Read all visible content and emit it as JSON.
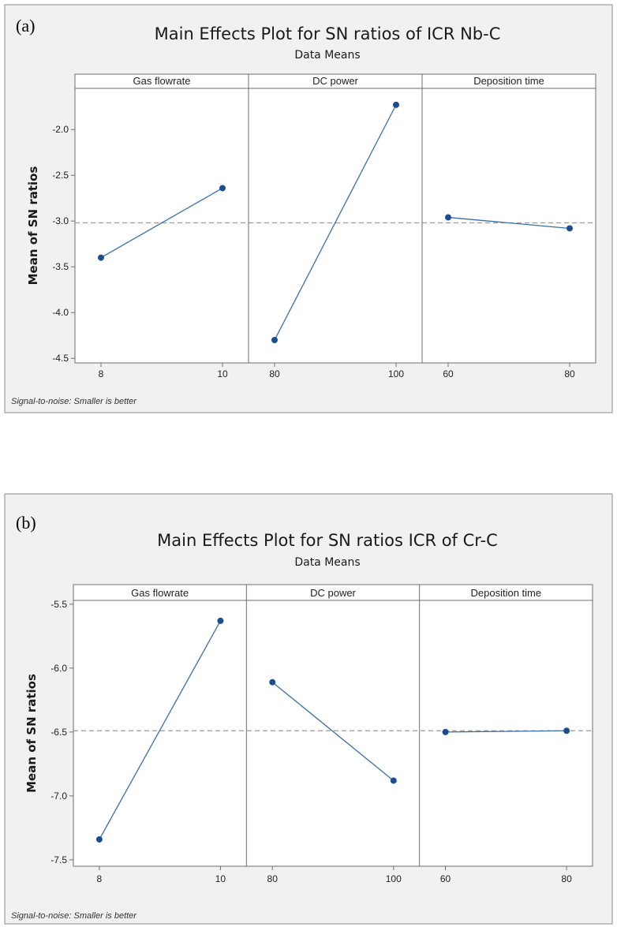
{
  "chart_data": [
    {
      "type": "line",
      "panel_tag": "(a)",
      "title": "Main Effects Plot for SN ratios of ICR Nb-C",
      "subtitle": "Data Means",
      "ylabel": "Mean of SN ratios",
      "xlabel": "",
      "footnote": "Signal-to-noise: Smaller is better",
      "ylim": [
        -4.55,
        -1.55
      ],
      "yticks": [
        -2.0,
        -2.5,
        -3.0,
        -3.5,
        -4.0,
        -4.5
      ],
      "ytick_labels": [
        "-2.0",
        "-2.5",
        "-3.0",
        "-3.5",
        "-4.0",
        "-4.5"
      ],
      "reference_mean": -3.02,
      "panels": [
        {
          "factor": "Gas flowrate",
          "x": [
            "8",
            "10"
          ],
          "values": [
            -3.4,
            -2.64
          ]
        },
        {
          "factor": "DC power",
          "x": [
            "80",
            "100"
          ],
          "values": [
            -4.3,
            -1.73
          ]
        },
        {
          "factor": "Deposition time",
          "x": [
            "60",
            "80"
          ],
          "values": [
            -2.96,
            -3.08
          ]
        }
      ]
    },
    {
      "type": "line",
      "panel_tag": "(b)",
      "title": "Main Effects Plot for SN ratios ICR of Cr-C",
      "subtitle": "Data Means",
      "ylabel": "Mean of SN ratios",
      "xlabel": "",
      "footnote": "Signal-to-noise: Smaller is better",
      "ylim": [
        -7.55,
        -5.47
      ],
      "yticks": [
        -5.5,
        -6.0,
        -6.5,
        -7.0,
        -7.5
      ],
      "ytick_labels": [
        "-5.5",
        "-6.0",
        "-6.5",
        "-7.0",
        "-7.5"
      ],
      "reference_mean": -6.49,
      "panels": [
        {
          "factor": "Gas flowrate",
          "x": [
            "8",
            "10"
          ],
          "values": [
            -7.34,
            -5.63
          ]
        },
        {
          "factor": "DC power",
          "x": [
            "80",
            "100"
          ],
          "values": [
            -6.11,
            -6.88
          ]
        },
        {
          "factor": "Deposition time",
          "x": [
            "60",
            "80"
          ],
          "values": [
            -6.5,
            -6.49
          ]
        }
      ]
    }
  ]
}
